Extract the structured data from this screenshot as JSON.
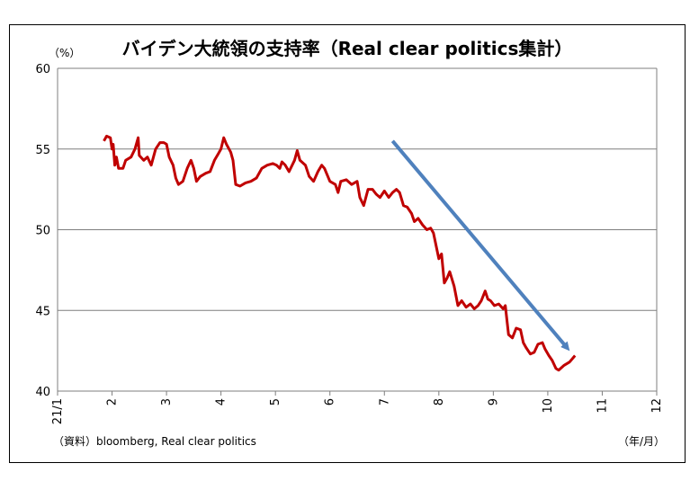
{
  "chart_data": {
    "type": "line",
    "title": "バイデン大統領の支持率（Real clear politics集計）",
    "ylabel": "（%）",
    "xlabel": "（年/月）",
    "source": "（資料）bloomberg, Real clear politics",
    "ylim": [
      40,
      60
    ],
    "yticks": [
      40,
      45,
      50,
      55,
      60
    ],
    "xlim": [
      0,
      11
    ],
    "xticks": [
      {
        "x": 0,
        "label": "21/1"
      },
      {
        "x": 1,
        "label": "2"
      },
      {
        "x": 2,
        "label": "3"
      },
      {
        "x": 3,
        "label": "4"
      },
      {
        "x": 4,
        "label": "5"
      },
      {
        "x": 5,
        "label": "6"
      },
      {
        "x": 6,
        "label": "7"
      },
      {
        "x": 7,
        "label": "8"
      },
      {
        "x": 8,
        "label": "9"
      },
      {
        "x": 9,
        "label": "10"
      },
      {
        "x": 10,
        "label": "11"
      },
      {
        "x": 11,
        "label": "12"
      }
    ],
    "grid": true,
    "series": [
      {
        "color": "#c00000",
        "points": [
          [
            0.85,
            55.5
          ],
          [
            0.9,
            55.8
          ],
          [
            0.97,
            55.7
          ],
          [
            1.0,
            55.0
          ],
          [
            1.02,
            55.3
          ],
          [
            1.05,
            54.0
          ],
          [
            1.08,
            54.5
          ],
          [
            1.12,
            53.8
          ],
          [
            1.2,
            53.8
          ],
          [
            1.25,
            54.3
          ],
          [
            1.35,
            54.5
          ],
          [
            1.42,
            55.0
          ],
          [
            1.48,
            55.7
          ],
          [
            1.5,
            54.6
          ],
          [
            1.58,
            54.3
          ],
          [
            1.65,
            54.5
          ],
          [
            1.72,
            54.0
          ],
          [
            1.8,
            55.0
          ],
          [
            1.88,
            55.4
          ],
          [
            1.95,
            55.4
          ],
          [
            2.0,
            55.3
          ],
          [
            2.05,
            54.5
          ],
          [
            2.12,
            54.0
          ],
          [
            2.17,
            53.2
          ],
          [
            2.22,
            52.8
          ],
          [
            2.3,
            53.0
          ],
          [
            2.38,
            53.8
          ],
          [
            2.45,
            54.3
          ],
          [
            2.5,
            53.8
          ],
          [
            2.55,
            53.0
          ],
          [
            2.62,
            53.3
          ],
          [
            2.72,
            53.5
          ],
          [
            2.8,
            53.6
          ],
          [
            2.88,
            54.3
          ],
          [
            2.95,
            54.7
          ],
          [
            3.0,
            55.0
          ],
          [
            3.05,
            55.7
          ],
          [
            3.1,
            55.3
          ],
          [
            3.18,
            54.8
          ],
          [
            3.22,
            54.3
          ],
          [
            3.27,
            52.8
          ],
          [
            3.35,
            52.7
          ],
          [
            3.45,
            52.9
          ],
          [
            3.55,
            53.0
          ],
          [
            3.65,
            53.2
          ],
          [
            3.75,
            53.8
          ],
          [
            3.85,
            54.0
          ],
          [
            3.95,
            54.1
          ],
          [
            4.02,
            54.0
          ],
          [
            4.08,
            53.8
          ],
          [
            4.12,
            54.2
          ],
          [
            4.18,
            54.0
          ],
          [
            4.25,
            53.6
          ],
          [
            4.35,
            54.3
          ],
          [
            4.4,
            54.9
          ],
          [
            4.45,
            54.3
          ],
          [
            4.55,
            54.0
          ],
          [
            4.62,
            53.3
          ],
          [
            4.7,
            53.0
          ],
          [
            4.78,
            53.6
          ],
          [
            4.85,
            54.0
          ],
          [
            4.9,
            53.8
          ],
          [
            5.0,
            53.0
          ],
          [
            5.1,
            52.8
          ],
          [
            5.15,
            52.3
          ],
          [
            5.2,
            53.0
          ],
          [
            5.3,
            53.1
          ],
          [
            5.4,
            52.8
          ],
          [
            5.5,
            53.0
          ],
          [
            5.55,
            52.0
          ],
          [
            5.62,
            51.5
          ],
          [
            5.7,
            52.5
          ],
          [
            5.78,
            52.5
          ],
          [
            5.85,
            52.2
          ],
          [
            5.92,
            52.0
          ],
          [
            6.0,
            52.4
          ],
          [
            6.08,
            52.0
          ],
          [
            6.15,
            52.3
          ],
          [
            6.22,
            52.5
          ],
          [
            6.28,
            52.3
          ],
          [
            6.35,
            51.5
          ],
          [
            6.42,
            51.4
          ],
          [
            6.5,
            51.0
          ],
          [
            6.55,
            50.5
          ],
          [
            6.62,
            50.7
          ],
          [
            6.7,
            50.3
          ],
          [
            6.78,
            50.0
          ],
          [
            6.85,
            50.1
          ],
          [
            6.9,
            49.8
          ],
          [
            6.95,
            49.0
          ],
          [
            7.0,
            48.2
          ],
          [
            7.05,
            48.5
          ],
          [
            7.1,
            46.7
          ],
          [
            7.15,
            47.0
          ],
          [
            7.2,
            47.4
          ],
          [
            7.28,
            46.5
          ],
          [
            7.35,
            45.3
          ],
          [
            7.42,
            45.6
          ],
          [
            7.5,
            45.2
          ],
          [
            7.58,
            45.4
          ],
          [
            7.65,
            45.1
          ],
          [
            7.72,
            45.3
          ],
          [
            7.78,
            45.6
          ],
          [
            7.85,
            46.2
          ],
          [
            7.9,
            45.7
          ],
          [
            7.95,
            45.6
          ],
          [
            8.02,
            45.3
          ],
          [
            8.1,
            45.4
          ],
          [
            8.18,
            45.1
          ],
          [
            8.22,
            45.3
          ],
          [
            8.28,
            43.5
          ],
          [
            8.35,
            43.3
          ],
          [
            8.42,
            43.9
          ],
          [
            8.5,
            43.8
          ],
          [
            8.55,
            43.0
          ],
          [
            8.6,
            42.7
          ],
          [
            8.68,
            42.3
          ],
          [
            8.75,
            42.4
          ],
          [
            8.82,
            42.9
          ],
          [
            8.9,
            43.0
          ],
          [
            8.95,
            42.6
          ],
          [
            9.02,
            42.2
          ],
          [
            9.08,
            41.9
          ],
          [
            9.15,
            41.4
          ],
          [
            9.2,
            41.3
          ],
          [
            9.3,
            41.6
          ],
          [
            9.4,
            41.8
          ],
          [
            9.5,
            42.2
          ]
        ]
      }
    ],
    "annotations": [
      {
        "type": "arrow",
        "color": "#4f81bd",
        "from": [
          6.15,
          55.5
        ],
        "to": [
          9.35,
          42.7
        ]
      }
    ]
  }
}
